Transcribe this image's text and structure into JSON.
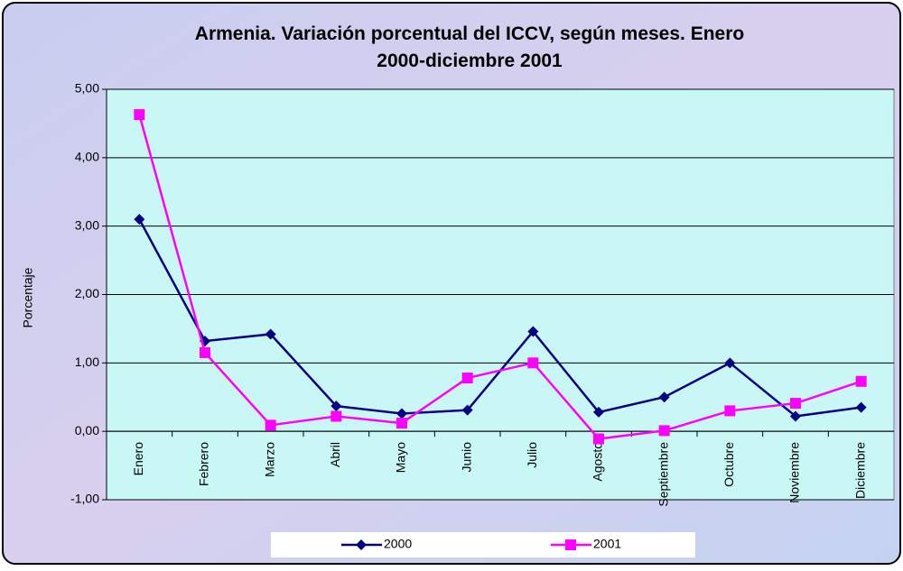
{
  "chart_data": {
    "type": "line",
    "title": "Armenia. Variación porcentual del ICCV, según meses. Enero 2000-diciembre 2001",
    "y_label": "Porcentaje",
    "categories": [
      "Enero",
      "Febrero",
      "Marzo",
      "Abril",
      "Mayo",
      "Junio",
      "Julio",
      "Agosto",
      "Septiembre",
      "Octubre",
      "Noviembre",
      "Diciembre"
    ],
    "series": [
      {
        "name": "2000",
        "color": "#000080",
        "marker": "diamond",
        "values": [
          3.1,
          1.32,
          1.42,
          0.37,
          0.26,
          0.31,
          1.46,
          0.28,
          0.5,
          1.0,
          0.22,
          0.35
        ]
      },
      {
        "name": "2001",
        "color": "#ff00ff",
        "marker": "square",
        "values": [
          4.63,
          1.15,
          0.09,
          0.22,
          0.12,
          0.78,
          1.0,
          -0.11,
          0.01,
          0.3,
          0.41,
          0.73
        ]
      }
    ],
    "ylim": [
      -1,
      5
    ],
    "yticks": [
      {
        "value": -1,
        "label": "-1,00"
      },
      {
        "value": 0,
        "label": "0,00"
      },
      {
        "value": 1,
        "label": "1,00"
      },
      {
        "value": 2,
        "label": "2,00"
      },
      {
        "value": 3,
        "label": "3,00"
      },
      {
        "value": 4,
        "label": "4,00"
      },
      {
        "value": 5,
        "label": "5,00"
      }
    ],
    "grid": true,
    "legend": "bottom"
  }
}
